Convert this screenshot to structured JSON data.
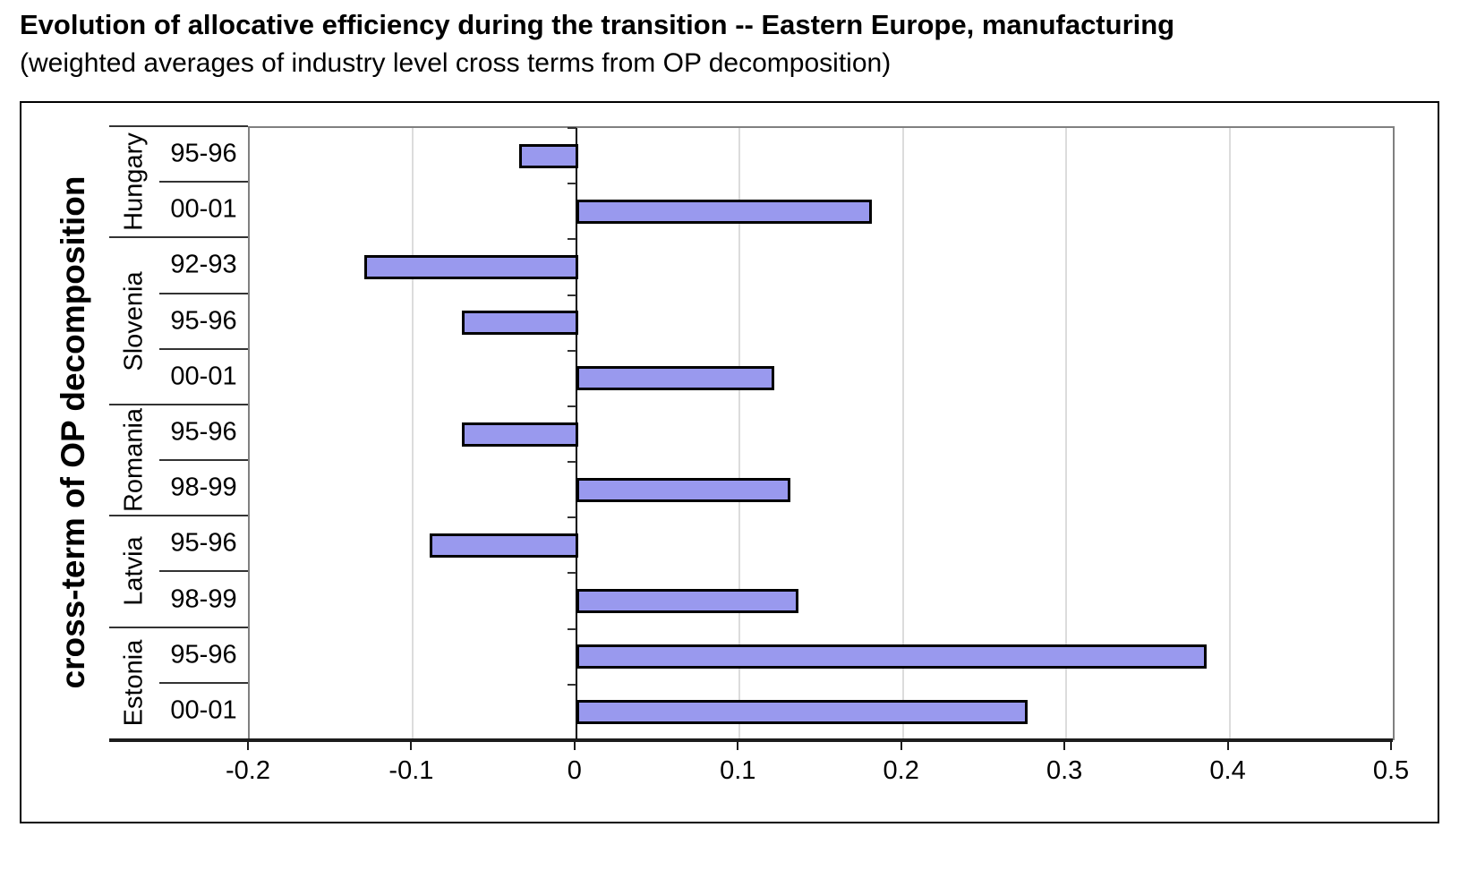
{
  "title": "Evolution of allocative efficiency during the transition -- Eastern Europe, manufacturing",
  "subtitle": "(weighted averages of industry level cross terms from OP decomposition)",
  "colors": {
    "bar_fill": "#9999EE",
    "bar_border": "#000000",
    "zero_line": "#000000",
    "gridline": "#DCDCDC",
    "plot_border": "#808080",
    "outer_border": "#000000",
    "axis_line": "#1C1C1C"
  },
  "chart_data": {
    "type": "bar",
    "orientation": "horizontal",
    "title": "Evolution of allocative efficiency during the transition -- Eastern Europe, manufacturing",
    "subtitle": "(weighted averages of industry level cross terms from OP decomposition)",
    "xlabel": "",
    "ylabel": "cross-term of OP decomposition",
    "xlim": [
      -0.2,
      0.5
    ],
    "grid": true,
    "legend": false,
    "xticks": [
      {
        "value": -0.2,
        "label": "-0.2"
      },
      {
        "value": -0.1,
        "label": "-0.1"
      },
      {
        "value": 0,
        "label": "0"
      },
      {
        "value": 0.1,
        "label": "0.1"
      },
      {
        "value": 0.2,
        "label": "0.2"
      },
      {
        "value": 0.3,
        "label": "0.3"
      },
      {
        "value": 0.4,
        "label": "0.4"
      },
      {
        "value": 0.5,
        "label": "0.5"
      }
    ],
    "groups": [
      {
        "country": "Hungary",
        "rows": [
          {
            "period": "95-96",
            "value": -0.035
          },
          {
            "period": "00-01",
            "value": 0.18
          }
        ]
      },
      {
        "country": "Slovenia",
        "rows": [
          {
            "period": "92-93",
            "value": -0.13
          },
          {
            "period": "95-96",
            "value": -0.07
          },
          {
            "period": "00-01",
            "value": 0.12
          }
        ]
      },
      {
        "country": "Romania",
        "rows": [
          {
            "period": "95-96",
            "value": -0.07
          },
          {
            "period": "98-99",
            "value": 0.13
          }
        ]
      },
      {
        "country": "Latvia",
        "rows": [
          {
            "period": "95-96",
            "value": -0.09
          },
          {
            "period": "98-99",
            "value": 0.135
          }
        ]
      },
      {
        "country": "Estonia",
        "rows": [
          {
            "period": "95-96",
            "value": 0.385
          },
          {
            "period": "00-01",
            "value": 0.275
          }
        ]
      }
    ]
  }
}
